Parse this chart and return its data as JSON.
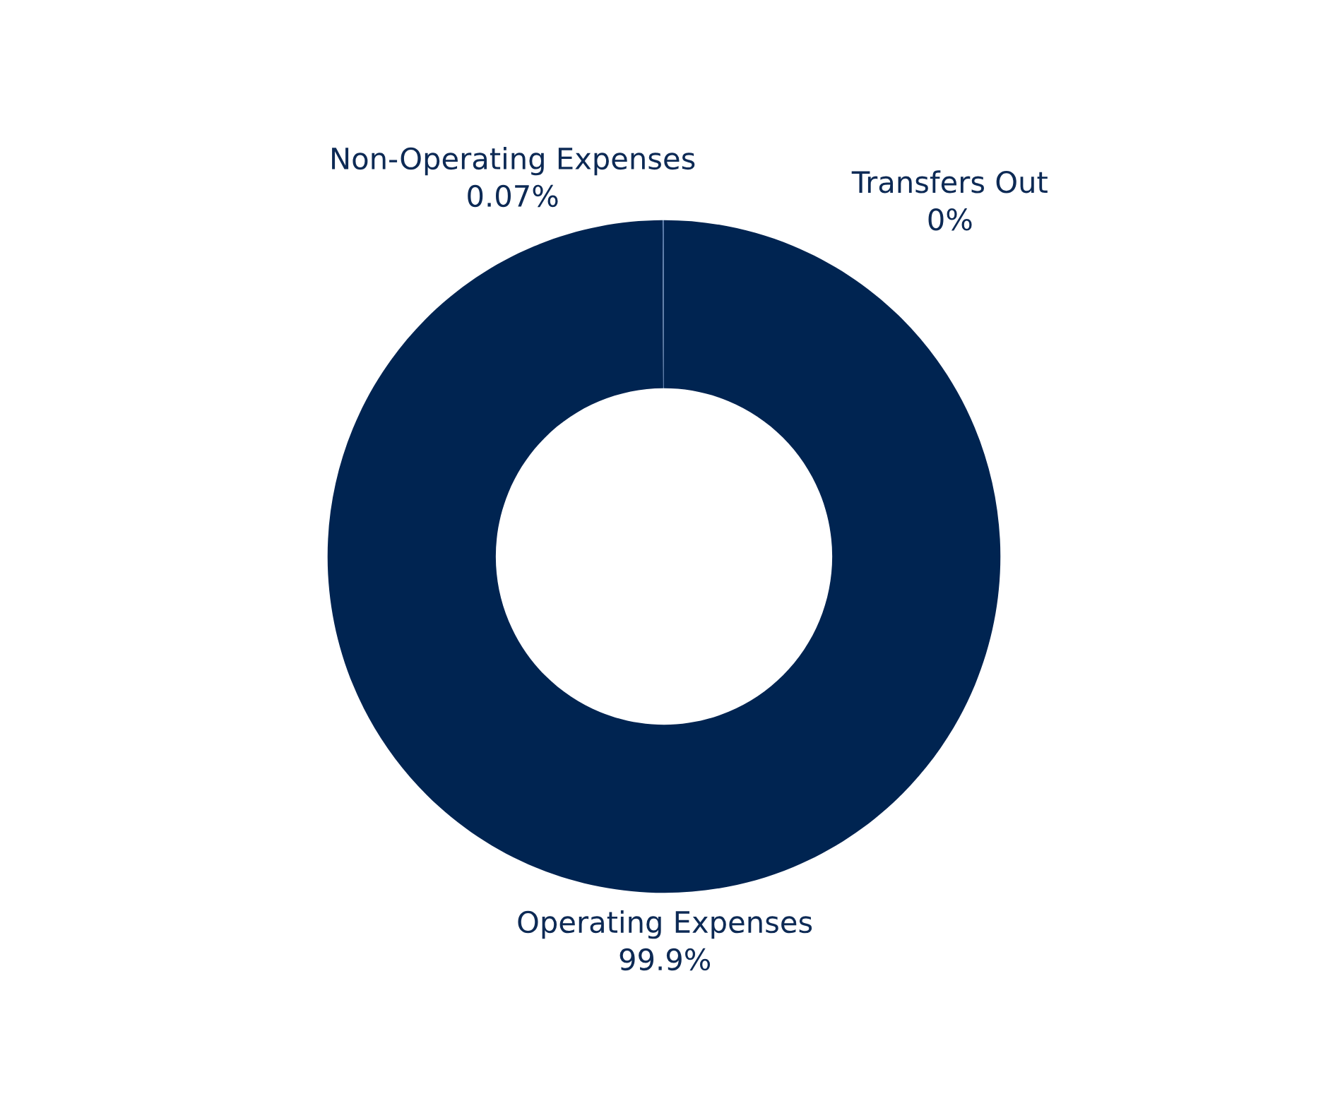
{
  "chart_data": {
    "type": "donut",
    "categories": [
      "Operating Expenses",
      "Non-Operating Expenses",
      "Transfers Out"
    ],
    "values": [
      99.9,
      0.07,
      0
    ],
    "value_labels": [
      "99.9%",
      "0.07%",
      "0%"
    ],
    "colors": [
      "#002451",
      "#5a7aa8",
      "#8fa8cc"
    ]
  }
}
